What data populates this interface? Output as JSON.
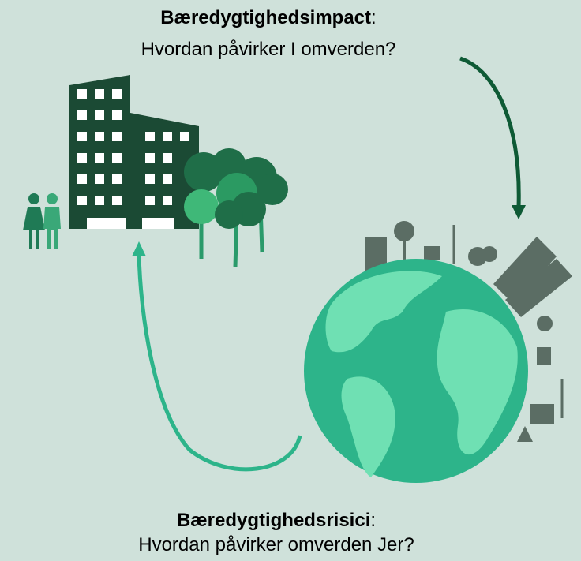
{
  "top": {
    "heading": "Bæredygtighedsimpact",
    "punctuation": ":",
    "question": "Hvordan påvirker I omverden?"
  },
  "bottom": {
    "heading": "Bæredygtighedsrisici",
    "punctuation": ":",
    "question": "Hvordan påvirker omverden Jer?"
  }
}
